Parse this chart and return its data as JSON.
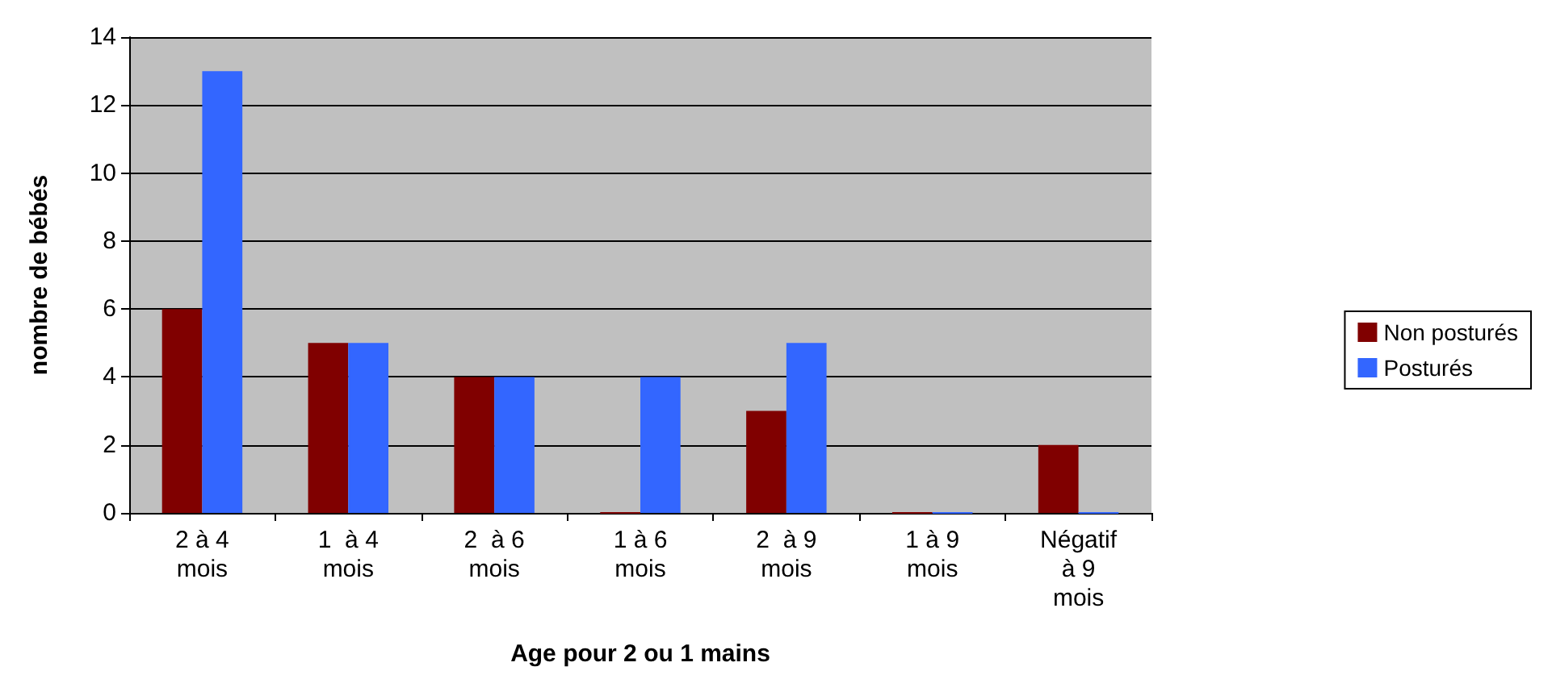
{
  "chart_data": {
    "type": "bar",
    "xlabel": "Age pour 2 ou 1 mains",
    "ylabel": "nombre de bébés",
    "categories": [
      "2 à 4\nmois",
      "1  à 4\nmois",
      "2  à 6\nmois",
      "1 à 6\nmois",
      "2  à 9\nmois",
      "1 à 9\nmois",
      "Négatif\nà 9\nmois"
    ],
    "series": [
      {
        "name": "Non posturés",
        "color": "#800000",
        "values": [
          6,
          5,
          4,
          0,
          3,
          0,
          2
        ]
      },
      {
        "name": "Posturés",
        "color": "#3366ff",
        "values": [
          13,
          5,
          4,
          4,
          5,
          0,
          0
        ]
      }
    ],
    "ylim": [
      0,
      14
    ],
    "yticks": [
      0,
      2,
      4,
      6,
      8,
      10,
      12,
      14
    ],
    "grid": "y",
    "legend": "right"
  }
}
